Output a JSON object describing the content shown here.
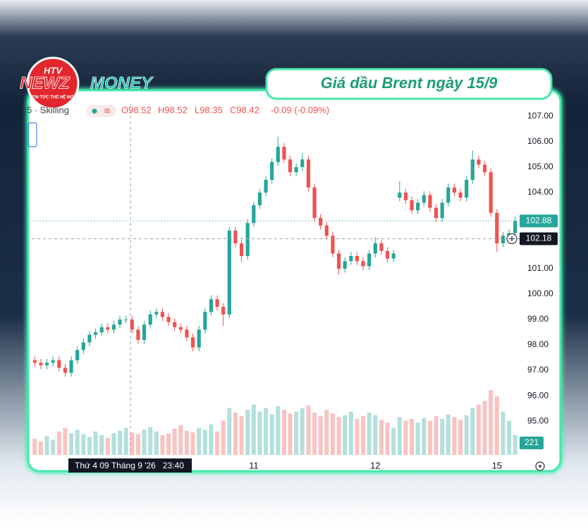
{
  "logo": {
    "badge": "HTV",
    "name_red": "NEWZ",
    "name_teal": "MONEY",
    "tagline": "TIN TỨC THẾ HỆ MỚI"
  },
  "title_box": "Giá dầu Brent ngày 15/9",
  "legend": {
    "symbol": "5 · Skilling",
    "open": "O98.52",
    "high": "H98.52",
    "low": "L98.35",
    "close": "C98.42",
    "change": "-0.09 (-0.09%)"
  },
  "chart_data": {
    "type": "candlestick",
    "categories": [
      null,
      null,
      null,
      null,
      null,
      null,
      null,
      null,
      null,
      null,
      null,
      null,
      null,
      null,
      null,
      null,
      null,
      null,
      null,
      null,
      null,
      null,
      null,
      null,
      null,
      null,
      null,
      null,
      null,
      null,
      null,
      null,
      null,
      null,
      null,
      null,
      "11",
      null,
      null,
      null,
      null,
      null,
      null,
      null,
      null,
      null,
      null,
      null,
      null,
      null,
      null,
      null,
      null,
      null,
      null,
      null,
      "12",
      null,
      null,
      null,
      null,
      null,
      null,
      null,
      null,
      null,
      null,
      null,
      null,
      null,
      null,
      null,
      null,
      null,
      null,
      null,
      "15",
      null,
      null,
      null
    ],
    "open": [
      97.4,
      97.3,
      97.2,
      97.3,
      97.4,
      97.1,
      96.9,
      97.4,
      97.8,
      98.1,
      98.4,
      98.5,
      98.7,
      98.6,
      98.8,
      99.0,
      99.0,
      98.6,
      98.2,
      98.8,
      99.2,
      99.3,
      99.1,
      98.9,
      98.7,
      98.6,
      98.3,
      97.9,
      98.6,
      99.3,
      99.8,
      99.5,
      99.2,
      102.5,
      102.0,
      101.5,
      102.8,
      103.5,
      104.0,
      104.5,
      105.2,
      105.8,
      105.3,
      104.8,
      105.0,
      105.3,
      104.2,
      103.0,
      102.7,
      102.3,
      101.6,
      101.0,
      101.3,
      101.5,
      101.3,
      101.1,
      101.6,
      102.0,
      101.7,
      101.4,
      103.8,
      104.0,
      103.7,
      103.3,
      103.6,
      103.9,
      103.4,
      103.0,
      103.6,
      104.2,
      104.0,
      103.8,
      104.5,
      105.3,
      105.1,
      104.8,
      103.2,
      102.0,
      102.3,
      102.4
    ],
    "high": [
      97.55,
      97.45,
      97.45,
      97.55,
      97.55,
      97.25,
      97.55,
      97.95,
      98.25,
      98.55,
      98.65,
      98.85,
      98.85,
      98.95,
      99.15,
      99.15,
      99.15,
      98.75,
      98.95,
      99.35,
      99.45,
      99.45,
      99.25,
      99.05,
      98.85,
      98.75,
      98.45,
      98.75,
      99.45,
      99.95,
      99.95,
      99.65,
      102.65,
      102.65,
      102.15,
      102.95,
      103.65,
      104.15,
      104.65,
      105.35,
      106.2,
      105.95,
      105.45,
      105.15,
      105.55,
      105.45,
      104.35,
      103.15,
      102.85,
      102.45,
      101.75,
      101.45,
      101.65,
      101.65,
      101.45,
      101.75,
      102.25,
      102.15,
      101.85,
      101.75,
      104.45,
      104.15,
      103.85,
      103.75,
      104.05,
      104.05,
      103.55,
      103.75,
      104.35,
      104.35,
      104.15,
      104.65,
      105.65,
      105.45,
      105.25,
      104.95,
      103.35,
      102.45,
      102.55,
      103.05
    ],
    "low": [
      97.15,
      97.05,
      97.05,
      97.15,
      96.95,
      96.75,
      96.75,
      97.25,
      97.65,
      97.95,
      98.25,
      98.35,
      98.45,
      98.45,
      98.65,
      98.85,
      98.45,
      98.05,
      98.05,
      98.65,
      99.05,
      98.95,
      98.75,
      98.55,
      98.45,
      98.15,
      97.75,
      97.75,
      98.45,
      99.15,
      99.35,
      98.75,
      99.05,
      101.85,
      101.25,
      101.35,
      102.65,
      103.35,
      103.85,
      104.35,
      105.05,
      105.15,
      104.65,
      104.65,
      104.85,
      104.05,
      102.85,
      102.55,
      102.15,
      101.45,
      100.75,
      100.85,
      101.15,
      101.15,
      100.95,
      100.95,
      101.45,
      101.55,
      101.25,
      101.25,
      103.65,
      103.55,
      103.15,
      103.15,
      103.45,
      103.25,
      102.85,
      102.85,
      103.45,
      103.85,
      103.65,
      103.65,
      104.35,
      104.95,
      104.65,
      103.05,
      101.65,
      101.85,
      102.15,
      102.25
    ],
    "close": [
      97.3,
      97.2,
      97.3,
      97.4,
      97.1,
      96.9,
      97.4,
      97.8,
      98.1,
      98.4,
      98.5,
      98.7,
      98.6,
      98.8,
      99.0,
      99.0,
      98.6,
      98.2,
      98.8,
      99.2,
      99.3,
      99.1,
      98.9,
      98.7,
      98.6,
      98.3,
      97.9,
      98.6,
      99.3,
      99.8,
      99.5,
      99.2,
      102.5,
      102.0,
      101.5,
      102.8,
      103.5,
      104.0,
      104.5,
      105.2,
      105.8,
      105.3,
      104.8,
      105.0,
      105.3,
      104.2,
      103.0,
      102.7,
      102.3,
      101.6,
      101.0,
      101.3,
      101.5,
      101.3,
      101.1,
      101.6,
      102.0,
      101.7,
      101.4,
      101.6,
      104.0,
      103.7,
      103.3,
      103.6,
      103.9,
      103.4,
      103.0,
      103.6,
      104.2,
      104.0,
      103.8,
      104.5,
      105.3,
      105.1,
      104.8,
      103.2,
      102.0,
      102.3,
      102.4,
      102.88
    ],
    "volume": [
      180,
      150,
      210,
      170,
      260,
      300,
      240,
      280,
      230,
      200,
      260,
      220,
      190,
      240,
      270,
      300,
      250,
      230,
      280,
      310,
      260,
      220,
      240,
      290,
      330,
      270,
      250,
      300,
      280,
      340,
      260,
      380,
      520,
      470,
      430,
      500,
      560,
      480,
      520,
      450,
      540,
      500,
      460,
      480,
      520,
      550,
      470,
      430,
      500,
      460,
      420,
      440,
      480,
      400,
      430,
      470,
      440,
      390,
      360,
      300,
      420,
      380,
      400,
      360,
      410,
      380,
      430,
      400,
      450,
      420,
      390,
      440,
      520,
      560,
      600,
      720,
      650,
      480,
      380,
      221
    ],
    "ylim": [
      93.67,
      107.47
    ],
    "yticks": [
      {
        "value": 107,
        "label": "107.00"
      },
      {
        "value": 106,
        "label": "106.00"
      },
      {
        "value": 105,
        "label": "105.00"
      },
      {
        "value": 104,
        "label": "104.00"
      },
      {
        "value": 101,
        "label": "101.00"
      },
      {
        "value": 100,
        "label": "100.00"
      },
      {
        "value": 99,
        "label": "99.00"
      },
      {
        "value": 98,
        "label": "98.00"
      },
      {
        "value": 97,
        "label": "97.00"
      },
      {
        "value": 96,
        "label": "96.00"
      },
      {
        "value": 95,
        "label": "95.00"
      }
    ],
    "grid": false,
    "up_color": "#26a69a",
    "down_color": "#ef5350",
    "crosshair_price": 102.18,
    "crosshair_label": "Thứ 4 09 Tháng 9 '26   23:40"
  }
}
